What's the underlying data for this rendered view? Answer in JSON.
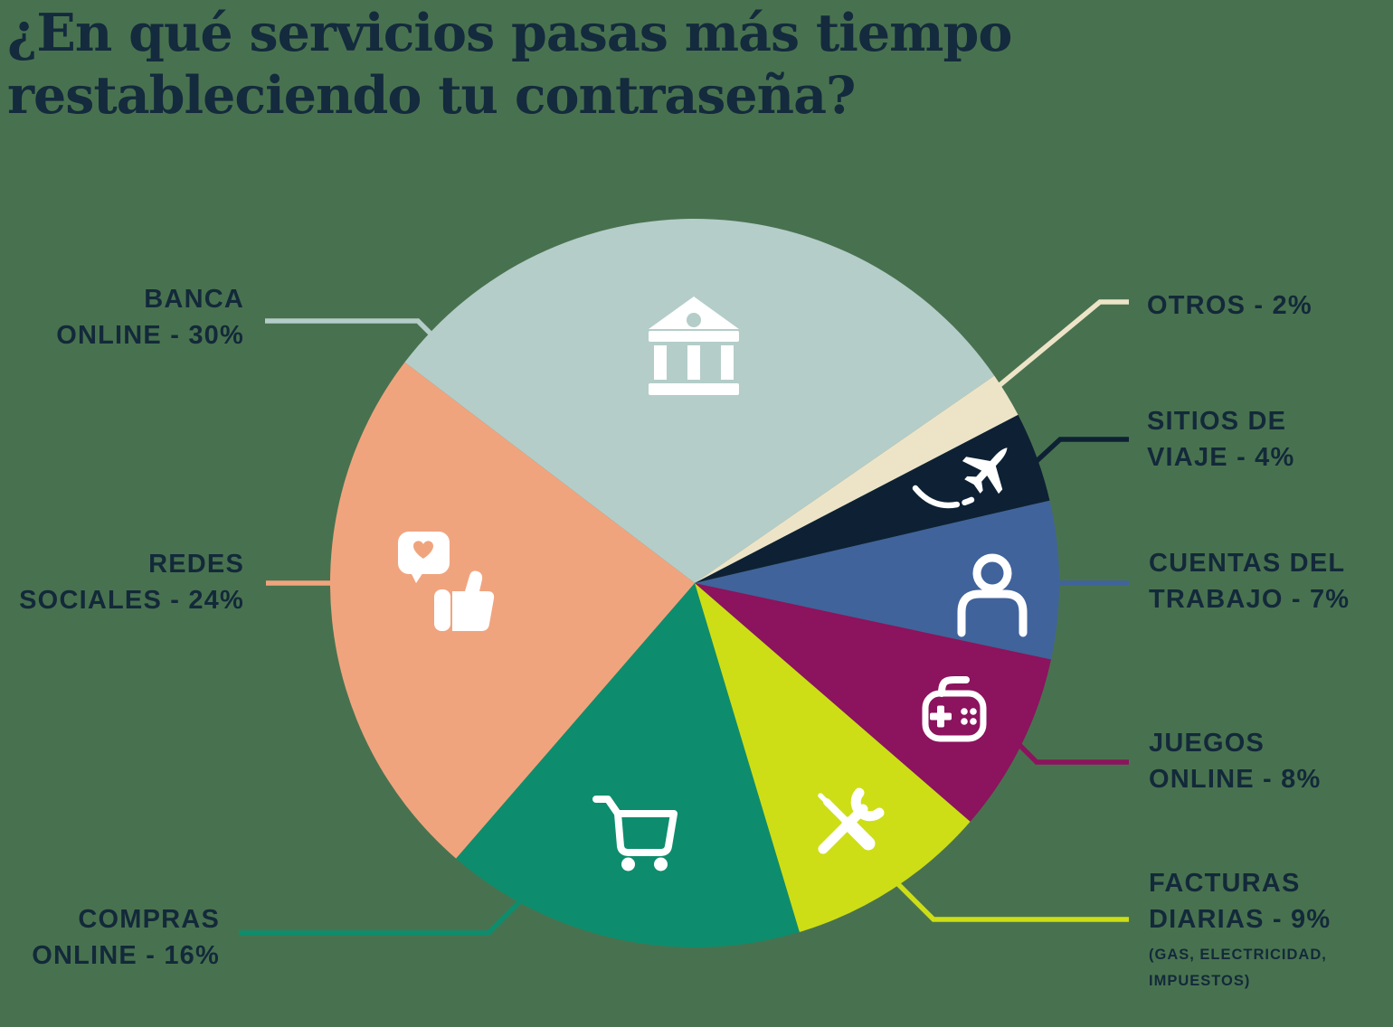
{
  "title": {
    "line1": "¿En qué servicios pasas más tiempo",
    "line2": "restableciendo tu contraseña?"
  },
  "colors": {
    "background": "#48724f",
    "title_text": "#142a3d",
    "label_text": "#13293a",
    "icon": "#ffffff"
  },
  "chart_data": {
    "type": "pie",
    "title": "¿En qué servicios pasas más tiempo restableciendo tu contraseña?",
    "direction": "clockwise",
    "start_angle_deg_from_top": -52.7,
    "legend_position": "around-pie-with-leader-lines",
    "total_pct": 100,
    "segments": [
      {
        "id": "banca",
        "label": "BANCA ONLINE",
        "value_pct": 30,
        "color": "#b4cdc9",
        "icon": "bank-icon",
        "label_lines": [
          "BANCA",
          "ONLINE - 30%"
        ]
      },
      {
        "id": "otros",
        "label": "OTROS",
        "value_pct": 2,
        "color": "#ede4c8",
        "icon": null,
        "label_lines": [
          "OTROS - 2%"
        ]
      },
      {
        "id": "sitios",
        "label": "SITIOS DE VIAJE",
        "value_pct": 4,
        "color": "#0e2134",
        "icon": "airplane-icon",
        "label_lines": [
          "SITIOS DE",
          "VIAJE - 4%"
        ]
      },
      {
        "id": "cuentas",
        "label": "CUENTAS DEL TRABAJO",
        "value_pct": 7,
        "color": "#40639b",
        "icon": "person-icon",
        "label_lines": [
          "CUENTAS DEL",
          "TRABAJO - 7%"
        ]
      },
      {
        "id": "juegos",
        "label": "JUEGOS ONLINE",
        "value_pct": 8,
        "color": "#8c135e",
        "icon": "gamepad-icon",
        "label_lines": [
          "JUEGOS",
          "ONLINE - 8%"
        ]
      },
      {
        "id": "facturas",
        "label": "FACTURAS DIARIAS",
        "value_pct": 9,
        "color": "#cdde16",
        "icon": "tools-icon",
        "label_lines": [
          "FACTURAS",
          "DIARIAS - 9%"
        ],
        "sub_lines": [
          "(GAS, ELECTRICIDAD,",
          "IMPUESTOS)"
        ]
      },
      {
        "id": "compras",
        "label": "COMPRAS ONLINE",
        "value_pct": 16,
        "color": "#0d8d6d",
        "icon": "cart-icon",
        "label_lines": [
          "COMPRAS",
          "ONLINE - 16%"
        ]
      },
      {
        "id": "redes",
        "label": "REDES SOCIALES",
        "value_pct": 24,
        "color": "#f0a47e",
        "icon": "social-like-icon",
        "label_lines": [
          "REDES",
          "SOCIALES - 24%"
        ]
      }
    ]
  }
}
